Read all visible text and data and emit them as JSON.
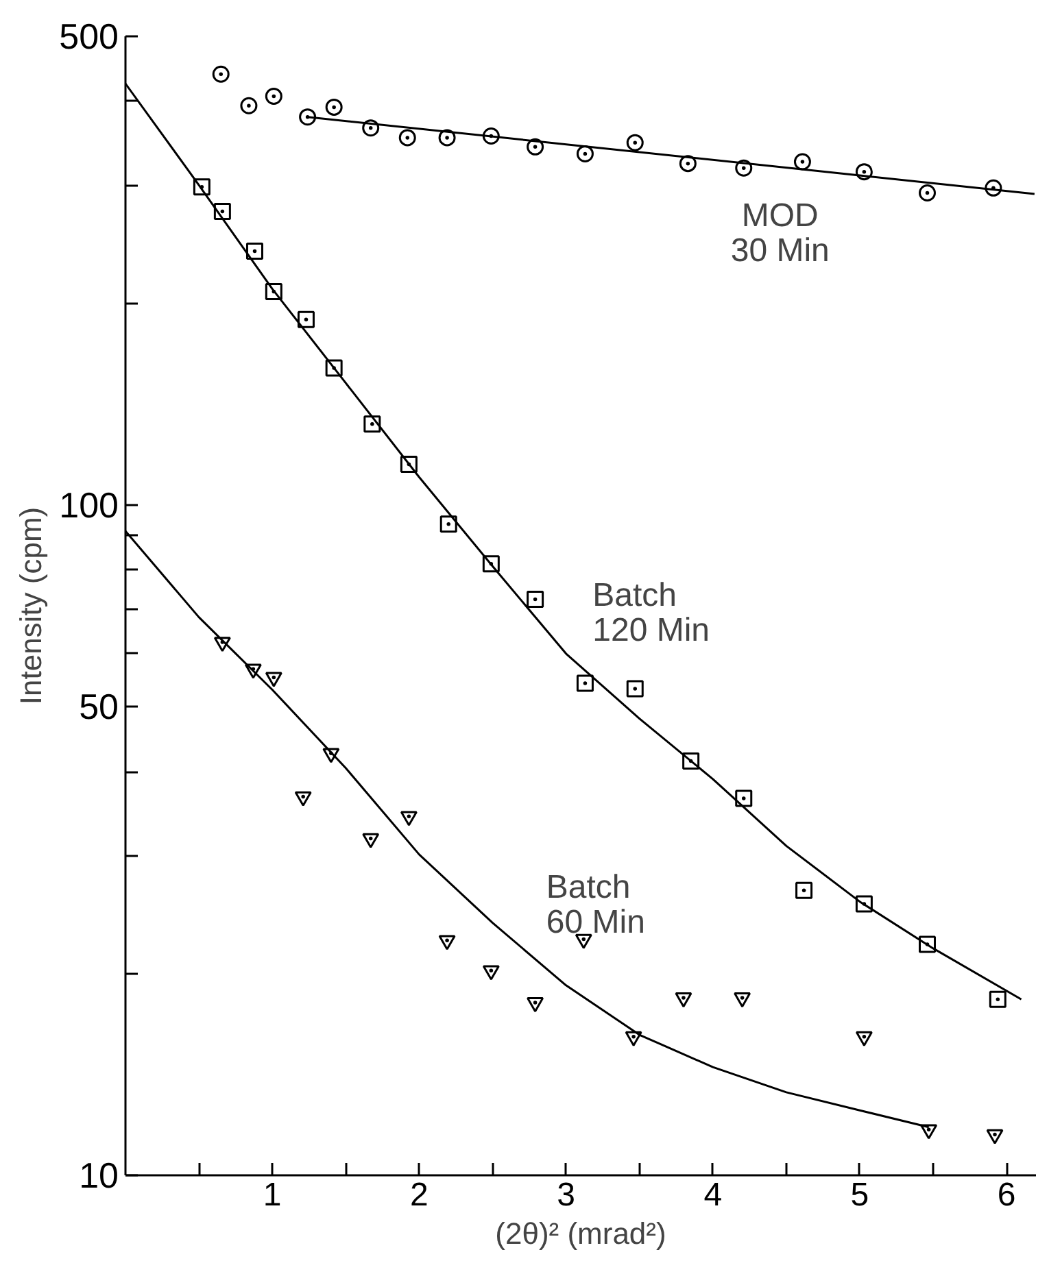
{
  "chart_data": {
    "type": "scatter",
    "xlabel": "(2θ)² (mrad²)",
    "ylabel": "Intensity (cpm)",
    "log": "y",
    "grid": false,
    "legend": false,
    "xlim": [
      0,
      6.2
    ],
    "ylim": [
      10,
      500
    ],
    "xticks": [
      {
        "value": 0.5,
        "label": null
      },
      1,
      {
        "value": 1.5,
        "label": null
      },
      2,
      {
        "value": 2.5,
        "label": null
      },
      3,
      {
        "value": 3.5,
        "label": null
      },
      4,
      {
        "value": 4.5,
        "label": null
      },
      5,
      {
        "value": 5.5,
        "label": null
      },
      6
    ],
    "yticks": [
      10,
      {
        "value": 20,
        "label": null
      },
      {
        "value": 30,
        "label": null
      },
      {
        "value": 40,
        "label": null
      },
      50,
      {
        "value": 60,
        "label": null
      },
      {
        "value": 70,
        "label": null
      },
      {
        "value": 80,
        "label": null
      },
      {
        "value": 90,
        "label": null
      },
      100,
      {
        "value": 200,
        "label": null
      },
      {
        "value": 300,
        "label": null
      },
      {
        "value": 400,
        "label": null
      },
      500
    ],
    "series": [
      {
        "marker": "circle",
        "color": "#000000",
        "x": [
          0.65,
          0.84,
          1.01,
          1.24,
          1.42,
          1.67,
          1.92,
          2.19,
          2.49,
          2.79,
          3.13,
          3.47,
          3.83,
          4.21,
          4.61,
          5.03,
          5.46,
          5.91
        ],
        "values": [
          439,
          394,
          407,
          379,
          392,
          365,
          353,
          353,
          355,
          342,
          334,
          347,
          323,
          318,
          325,
          314,
          292,
          297
        ]
      },
      {
        "type": "line",
        "name": "MOD\n30 Min",
        "line_style": "solid",
        "color": "#000000",
        "x": [
          1.24,
          6.19
        ],
        "values": [
          379,
          291
        ]
      },
      {
        "marker": "square",
        "color": "#000000",
        "x": [
          0.52,
          0.66,
          0.88,
          1.01,
          1.23,
          1.42,
          1.68,
          1.93,
          2.2,
          2.49,
          2.79,
          3.13,
          3.47,
          3.85,
          4.21,
          4.62,
          5.03,
          5.46,
          5.94
        ],
        "values": [
          298,
          274,
          239,
          208,
          189,
          160,
          132,
          115,
          93.6,
          81.7,
          72.3,
          54.2,
          53.2,
          41.5,
          36.5,
          26.6,
          25.4,
          22.1,
          18.3
        ]
      },
      {
        "type": "line",
        "name": "Batch\n120 Min",
        "line_style": "solid",
        "color": "#000000",
        "x": [
          0,
          0.5,
          1,
          1.5,
          2,
          2.5,
          3,
          3.5,
          4,
          4.5,
          5,
          5.5,
          6.1
        ],
        "values": [
          425,
          300,
          210,
          152,
          110,
          81,
          60,
          48,
          39,
          31,
          25.6,
          21.8,
          18.3
        ]
      },
      {
        "marker": "triangle",
        "color": "#000000",
        "x": [
          0.66,
          0.87,
          1.01,
          1.21,
          1.4,
          1.67,
          1.93,
          2.19,
          2.49,
          2.79,
          3.12,
          3.46,
          3.8,
          4.2,
          5.03,
          5.47,
          5.92
        ],
        "values": [
          62.4,
          56.9,
          55.3,
          36.7,
          42.6,
          31.8,
          34.3,
          22.4,
          20.2,
          18.1,
          22.5,
          16.1,
          18.4,
          18.4,
          16.1,
          11.7,
          11.5
        ]
      },
      {
        "type": "line",
        "name": "Batch\n60 Min",
        "line_style": "solid",
        "color": "#000000",
        "x": [
          0,
          0.5,
          1,
          1.5,
          2,
          2.5,
          3,
          3.5,
          4,
          4.5,
          5,
          5.47
        ],
        "values": [
          91.4,
          68,
          53,
          40.5,
          30.1,
          23.8,
          19.2,
          16.2,
          14.5,
          13.3,
          12.5,
          11.8
        ]
      }
    ]
  }
}
